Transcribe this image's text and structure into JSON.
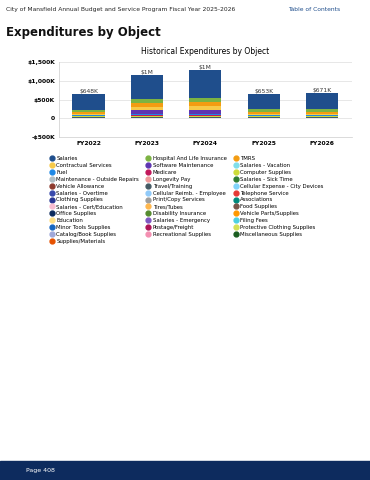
{
  "header": {
    "left": "City of Mansfield Annual Budget and Service Program Fiscal Year 2025-2026",
    "right": "Table of Contents"
  },
  "heading": "Expenditures by Object",
  "footer": "Page 408",
  "chart_data": {
    "type": "bar",
    "stacked": true,
    "title": "Historical Expenditures by Object",
    "categories": [
      "FY2022",
      "FY2023",
      "FY2024",
      "FY2025",
      "FY2026"
    ],
    "ylim": [
      -500,
      1500
    ],
    "yticks": [
      {
        "value": -500,
        "label": "-$500K"
      },
      0,
      {
        "value": 500,
        "label": "$500K"
      },
      {
        "value": 1000,
        "label": "$1,000K"
      },
      {
        "value": 1500,
        "label": "$1,500K"
      }
    ],
    "grid": true,
    "total_labels": [
      "$648K",
      "$1M",
      "$1M",
      "$653K",
      "$671K"
    ],
    "series": [
      {
        "name": "Salaries",
        "color": "#1f4e8c",
        "values": [
          420,
          627,
          762,
          410,
          423
        ]
      },
      {
        "name": "Hospital And Life Insurance",
        "color": "#7cb342",
        "values": [
          60,
          120,
          110,
          70,
          75
        ]
      },
      {
        "name": "TMRS",
        "color": "#f39c12",
        "values": [
          50,
          90,
          100,
          60,
          60
        ]
      },
      {
        "name": "Contractual Services",
        "color": "#f7c948",
        "values": [
          30,
          90,
          120,
          30,
          30
        ]
      },
      {
        "name": "Software Maintenance",
        "color": "#5e35b1",
        "values": [
          0,
          120,
          100,
          0,
          0
        ]
      },
      {
        "name": "Salaries - Vacation",
        "color": "#80deea",
        "values": [
          0,
          0,
          0,
          0,
          0
        ]
      },
      {
        "name": "Fuel",
        "color": "#1e88e5",
        "values": [
          20,
          30,
          30,
          15,
          15
        ]
      },
      {
        "name": "Medicare",
        "color": "#c2185b",
        "values": [
          10,
          15,
          20,
          10,
          10
        ]
      },
      {
        "name": "Computer Supplies",
        "color": "#cddc39",
        "values": [
          20,
          20,
          20,
          20,
          20
        ]
      },
      {
        "name": "Maintenance - Outside Repairs",
        "color": "#b0bec5",
        "values": [
          0,
          0,
          0,
          0,
          0
        ]
      },
      {
        "name": "Longevity Pay",
        "color": "#ef9a9a",
        "values": [
          10,
          10,
          10,
          10,
          10
        ]
      },
      {
        "name": "Salaries - Sick Time",
        "color": "#2e7d32",
        "values": [
          0,
          0,
          0,
          0,
          0
        ]
      },
      {
        "name": "Vehicle Allowance",
        "color": "#8d3b2e",
        "values": [
          0,
          0,
          0,
          0,
          0
        ]
      },
      {
        "name": "Travel/Training",
        "color": "#455a64",
        "values": [
          10,
          10,
          10,
          10,
          10
        ]
      },
      {
        "name": "Cellular Expense - City Devices",
        "color": "#81d4fa",
        "values": [
          0,
          0,
          0,
          0,
          0
        ]
      },
      {
        "name": "Salaries - Overtime",
        "color": "#3949ab",
        "values": [
          0,
          0,
          0,
          0,
          0
        ]
      },
      {
        "name": "Cellular Reimb. - Employee",
        "color": "#90caf9",
        "values": [
          0,
          0,
          0,
          0,
          0
        ]
      },
      {
        "name": "Telephone Service",
        "color": "#e53935",
        "values": [
          8,
          8,
          8,
          8,
          8
        ]
      },
      {
        "name": "Clothing Supplies",
        "color": "#283593",
        "values": [
          0,
          0,
          0,
          0,
          0
        ]
      },
      {
        "name": "Print/Copy Services",
        "color": "#9e9e9e",
        "values": [
          0,
          0,
          0,
          0,
          0
        ]
      },
      {
        "name": "Associations",
        "color": "#00897b",
        "values": [
          0,
          0,
          0,
          0,
          0
        ]
      },
      {
        "name": "Salaries - Cert/Education",
        "color": "#f8bbd0",
        "values": [
          0,
          0,
          0,
          0,
          0
        ]
      },
      {
        "name": "Tires/Tubes",
        "color": "#ffb74d",
        "values": [
          0,
          0,
          0,
          0,
          0
        ]
      },
      {
        "name": "Food Supplies",
        "color": "#795548",
        "values": [
          0,
          0,
          0,
          0,
          0
        ]
      },
      {
        "name": "Office Supplies",
        "color": "#0d2b5e",
        "values": [
          10,
          10,
          10,
          10,
          10
        ]
      },
      {
        "name": "Disability Insurance",
        "color": "#558b2f",
        "values": [
          0,
          0,
          0,
          0,
          0
        ]
      },
      {
        "name": "Vehicle Parts/Supplies",
        "color": "#ff9800",
        "values": [
          0,
          0,
          0,
          0,
          0
        ]
      },
      {
        "name": "Education",
        "color": "#ffe082",
        "values": [
          0,
          0,
          0,
          0,
          0
        ]
      },
      {
        "name": "Salaries - Emergency",
        "color": "#7e57c2",
        "values": [
          0,
          0,
          0,
          0,
          0
        ]
      },
      {
        "name": "Filing Fees",
        "color": "#4dd0e1",
        "values": [
          0,
          0,
          0,
          0,
          0
        ]
      },
      {
        "name": "Minor Tools Supplies",
        "color": "#1565c0",
        "values": [
          0,
          0,
          0,
          0,
          0
        ]
      },
      {
        "name": "Postage/Freight",
        "color": "#ad1457",
        "values": [
          0,
          0,
          0,
          0,
          0
        ]
      },
      {
        "name": "Protective Clothing Supplies",
        "color": "#d4e157",
        "values": [
          0,
          0,
          0,
          0,
          0
        ]
      },
      {
        "name": "Catalog/Book Supplies",
        "color": "#9fa8da",
        "values": [
          0,
          0,
          0,
          0,
          0
        ]
      },
      {
        "name": "Recreational Supplies",
        "color": "#f48fb1",
        "values": [
          0,
          0,
          0,
          0,
          0
        ]
      },
      {
        "name": "Miscellaneous Supplies",
        "color": "#1b5e20",
        "values": [
          0,
          0,
          0,
          0,
          0
        ]
      },
      {
        "name": "Supplies/Materials",
        "color": "#e65100",
        "values": [
          0,
          0,
          0,
          0,
          0
        ]
      }
    ]
  }
}
